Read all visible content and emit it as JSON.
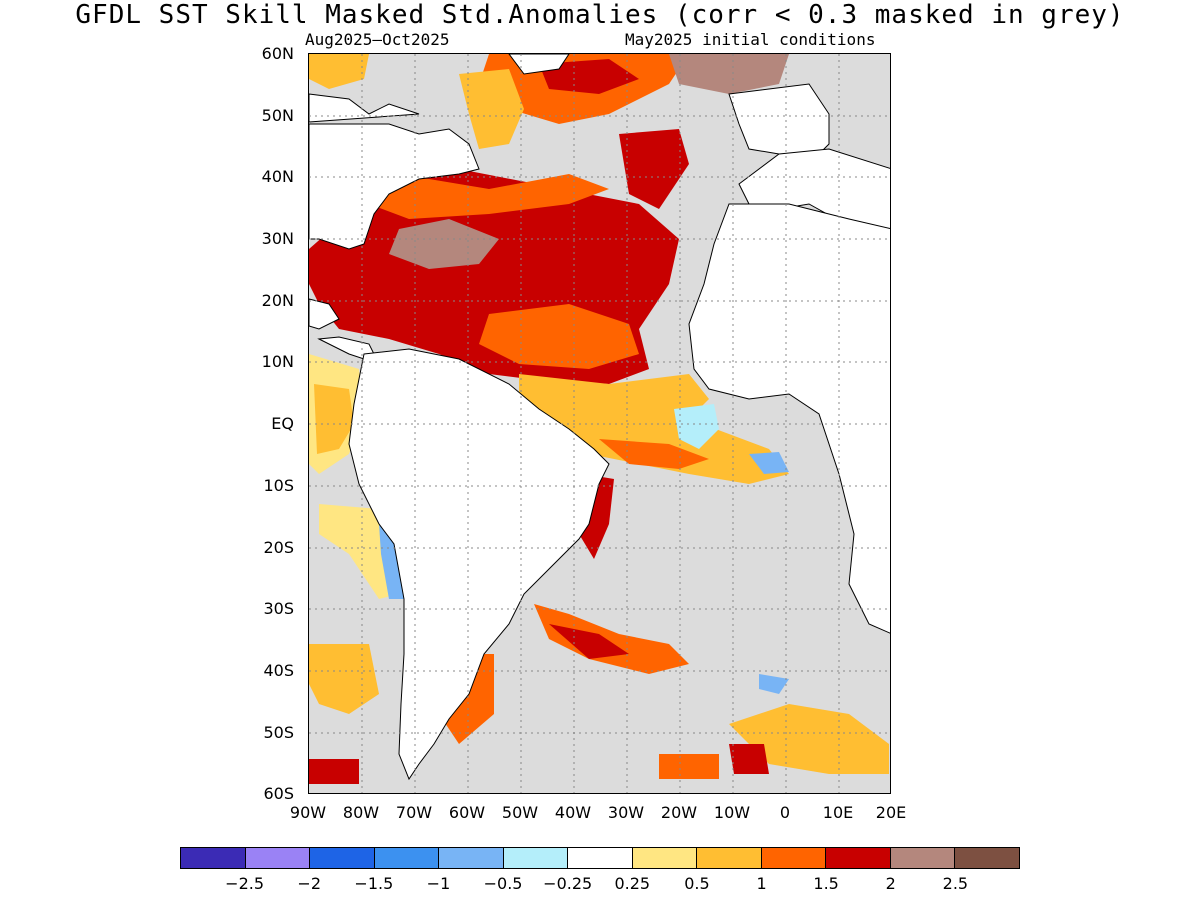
{
  "title": "GFDL  SST Skill Masked Std.Anomalies (corr < 0.3 masked in grey)",
  "subtitle_left": "Aug2025–Oct2025",
  "subtitle_right": "May2025 initial conditions",
  "lat_labels": [
    "60N",
    "50N",
    "40N",
    "30N",
    "20N",
    "10N",
    "EQ",
    "10S",
    "20S",
    "30S",
    "40S",
    "50S",
    "60S"
  ],
  "lon_labels": [
    "90W",
    "80W",
    "70W",
    "60W",
    "50W",
    "40W",
    "30W",
    "20W",
    "10W",
    "0",
    "10E",
    "20E"
  ],
  "colorbar": {
    "colors": [
      "#3b2bb5",
      "#9a82f5",
      "#1e64e6",
      "#3c91f0",
      "#78b4f5",
      "#b4eefa",
      "#ffffff",
      "#ffe682",
      "#ffbe32",
      "#ff6400",
      "#c80000",
      "#b4877d",
      "#7d5041"
    ],
    "labels": [
      "−2.5",
      "−2",
      "−1.5",
      "−1",
      "−0.5",
      "−0.25",
      "0.25",
      "0.5",
      "1",
      "1.5",
      "2",
      "2.5"
    ]
  },
  "map_colors": {
    "ocean_masked": "#dcdcdc",
    "land": "#ffffff",
    "coast": "#000000"
  }
}
